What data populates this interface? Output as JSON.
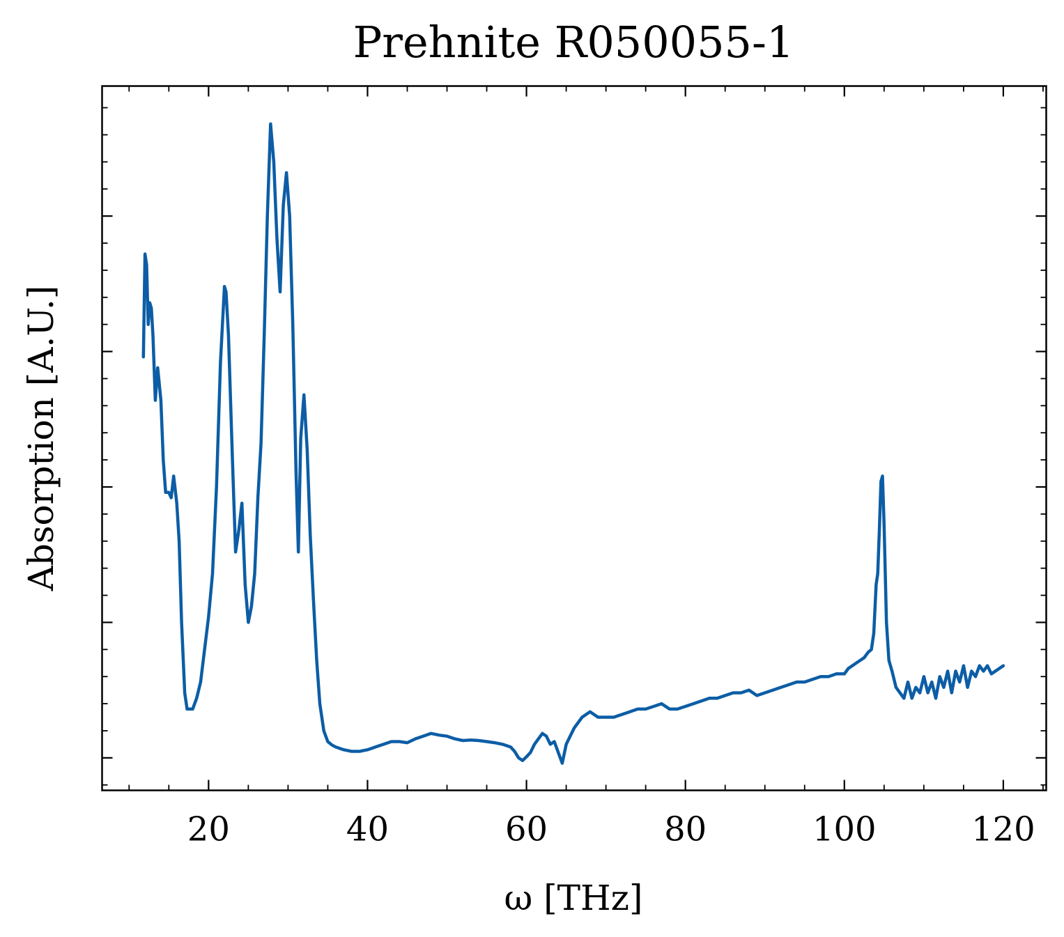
{
  "chart_data": {
    "type": "line",
    "title": "Prehnite R050055-1",
    "xlabel": "ω [THz]",
    "ylabel": "Absorption [A.U.]",
    "xlim": [
      6.6,
      125.4
    ],
    "ylim": [
      -0.06,
      1.24
    ],
    "xticks": [
      20,
      40,
      60,
      80,
      100,
      120
    ],
    "xtick_labels": [
      "20",
      "40",
      "60",
      "80",
      "100",
      "120"
    ],
    "yticks_unlabeled": [
      0.0,
      0.25,
      0.5,
      0.75,
      1.0
    ],
    "grid": false,
    "legend": "none",
    "series": [
      {
        "color": "#0C5DA5",
        "x": [
          11.8,
          12.0,
          12.2,
          12.4,
          12.6,
          12.8,
          13.0,
          13.3,
          13.6,
          14.0,
          14.3,
          14.6,
          15.0,
          15.3,
          15.6,
          16.0,
          16.3,
          16.6,
          17.0,
          17.3,
          17.6,
          18.0,
          18.5,
          19.0,
          19.5,
          20.0,
          20.5,
          21.0,
          21.5,
          22.0,
          22.2,
          22.5,
          23.0,
          23.4,
          23.8,
          24.2,
          24.6,
          25.0,
          25.4,
          25.8,
          26.2,
          26.6,
          27.0,
          27.4,
          27.8,
          28.2,
          28.6,
          29.0,
          29.4,
          29.8,
          30.2,
          30.6,
          31.0,
          31.3,
          31.6,
          32.0,
          32.4,
          32.8,
          33.2,
          33.6,
          34.0,
          34.5,
          35.0,
          35.5,
          36.0,
          37.0,
          38.0,
          39.0,
          40.0,
          41.0,
          42.0,
          43.0,
          44.0,
          45.0,
          46.0,
          47.0,
          48.0,
          49.0,
          50.0,
          51.0,
          52.0,
          53.0,
          54.0,
          55.0,
          56.0,
          57.0,
          58.0,
          58.5,
          59.0,
          59.5,
          60.0,
          60.5,
          61.0,
          61.5,
          62.0,
          62.5,
          63.0,
          63.5,
          64.0,
          64.5,
          65.0,
          65.5,
          66.0,
          67.0,
          68.0,
          69.0,
          70.0,
          71.0,
          72.0,
          73.0,
          74.0,
          75.0,
          76.0,
          77.0,
          78.0,
          79.0,
          80.0,
          81.0,
          82.0,
          83.0,
          84.0,
          85.0,
          86.0,
          87.0,
          88.0,
          89.0,
          90.0,
          91.0,
          92.0,
          93.0,
          94.0,
          95.0,
          96.0,
          97.0,
          98.0,
          99.0,
          100.0,
          100.5,
          101.0,
          101.5,
          102.0,
          102.5,
          103.0,
          103.4,
          103.7,
          104.0,
          104.2,
          104.4,
          104.6,
          104.8,
          105.0,
          105.3,
          105.6,
          106.0,
          106.5,
          107.0,
          107.5,
          108.0,
          108.5,
          109.0,
          109.5,
          110.0,
          110.5,
          111.0,
          111.5,
          112.0,
          112.5,
          113.0,
          113.5,
          114.0,
          114.5,
          115.0,
          115.5,
          116.0,
          116.5,
          117.0,
          117.5,
          118.0,
          118.5,
          119.0,
          119.5,
          120.0
        ],
        "y": [
          0.74,
          0.93,
          0.91,
          0.8,
          0.84,
          0.83,
          0.78,
          0.66,
          0.72,
          0.66,
          0.55,
          0.49,
          0.49,
          0.48,
          0.52,
          0.47,
          0.4,
          0.25,
          0.12,
          0.09,
          0.09,
          0.09,
          0.11,
          0.14,
          0.2,
          0.26,
          0.34,
          0.5,
          0.73,
          0.87,
          0.86,
          0.78,
          0.55,
          0.38,
          0.42,
          0.47,
          0.32,
          0.25,
          0.28,
          0.34,
          0.48,
          0.58,
          0.78,
          1.0,
          1.17,
          1.1,
          0.96,
          0.86,
          1.02,
          1.08,
          1.0,
          0.8,
          0.53,
          0.38,
          0.59,
          0.67,
          0.57,
          0.41,
          0.29,
          0.18,
          0.1,
          0.05,
          0.03,
          0.024,
          0.02,
          0.015,
          0.012,
          0.012,
          0.015,
          0.02,
          0.025,
          0.03,
          0.03,
          0.028,
          0.035,
          0.04,
          0.045,
          0.042,
          0.04,
          0.035,
          0.032,
          0.033,
          0.032,
          0.03,
          0.028,
          0.025,
          0.02,
          0.012,
          0.0,
          -0.005,
          0.002,
          0.01,
          0.025,
          0.035,
          0.045,
          0.04,
          0.025,
          0.03,
          0.01,
          -0.01,
          0.025,
          0.04,
          0.055,
          0.075,
          0.085,
          0.075,
          0.075,
          0.075,
          0.08,
          0.085,
          0.09,
          0.09,
          0.095,
          0.1,
          0.09,
          0.09,
          0.095,
          0.1,
          0.105,
          0.11,
          0.11,
          0.115,
          0.12,
          0.12,
          0.125,
          0.115,
          0.12,
          0.125,
          0.13,
          0.135,
          0.14,
          0.14,
          0.145,
          0.15,
          0.15,
          0.155,
          0.155,
          0.165,
          0.17,
          0.175,
          0.18,
          0.185,
          0.195,
          0.2,
          0.23,
          0.32,
          0.34,
          0.42,
          0.51,
          0.52,
          0.43,
          0.25,
          0.18,
          0.16,
          0.13,
          0.12,
          0.11,
          0.14,
          0.11,
          0.13,
          0.12,
          0.15,
          0.12,
          0.14,
          0.11,
          0.15,
          0.13,
          0.16,
          0.12,
          0.16,
          0.14,
          0.17,
          0.13,
          0.16,
          0.15,
          0.17,
          0.16,
          0.17,
          0.155,
          0.16,
          0.165,
          0.17
        ]
      }
    ]
  }
}
